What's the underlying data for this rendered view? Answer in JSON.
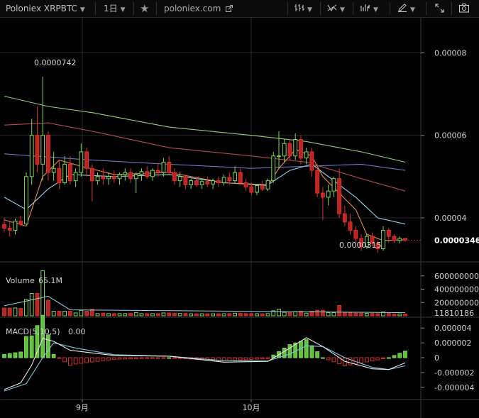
{
  "toolbar": {
    "symbol": "Poloniex XRPBTC",
    "interval": "1日",
    "site": "poloniex.com",
    "icons": [
      "chevron-down-icon",
      "star-icon",
      "external-link-icon",
      "bar-style-icon",
      "indicator-icon",
      "compare-icon",
      "draw-icon",
      "fullscreen-icon",
      "screenshot-icon"
    ]
  },
  "chart_data": {
    "type": "candlestick",
    "price_axis": {
      "ticks": [
        "0.00008",
        "0.00006",
        "0.00004"
      ],
      "current_label": "0.0000346",
      "range": [
        2.95e-05,
        8.85e-05
      ]
    },
    "annotations": {
      "high_label": "0.0000742",
      "low_label": "0.0000315"
    },
    "x_axis": {
      "labels": [
        "9月",
        "10月"
      ]
    },
    "candles": [
      [
        3.84,
        4.01,
        3.65,
        3.75
      ],
      [
        3.75,
        3.9,
        3.55,
        3.7
      ],
      [
        3.7,
        3.98,
        3.6,
        3.92
      ],
      [
        3.92,
        4.05,
        3.8,
        3.85
      ],
      [
        3.85,
        5.1,
        3.85,
        5.0
      ],
      [
        5.0,
        6.4,
        4.8,
        6.0
      ],
      [
        6.0,
        6.7,
        5.1,
        5.3
      ],
      [
        5.3,
        7.42,
        4.9,
        6.0
      ],
      [
        6.0,
        6.1,
        4.9,
        5.1
      ],
      [
        5.1,
        5.6,
        4.9,
        5.2
      ],
      [
        5.2,
        5.4,
        4.7,
        4.85
      ],
      [
        4.85,
        5.5,
        4.8,
        5.3
      ],
      [
        5.3,
        5.5,
        4.8,
        4.9
      ],
      [
        4.9,
        5.2,
        4.75,
        5.1
      ],
      [
        5.1,
        5.8,
        5.0,
        5.6
      ],
      [
        5.6,
        5.7,
        5.0,
        5.2
      ],
      [
        5.2,
        5.3,
        4.4,
        4.9
      ],
      [
        4.9,
        5.1,
        4.8,
        5.0
      ],
      [
        5.0,
        5.2,
        4.8,
        4.95
      ],
      [
        4.95,
        5.1,
        4.8,
        5.0
      ],
      [
        5.0,
        5.15,
        4.85,
        4.95
      ],
      [
        4.95,
        5.1,
        4.8,
        5.05
      ],
      [
        5.05,
        5.2,
        4.9,
        5.1
      ],
      [
        5.1,
        5.2,
        4.85,
        4.95
      ],
      [
        4.95,
        5.1,
        4.6,
        5.05
      ],
      [
        5.05,
        5.2,
        4.9,
        5.12
      ],
      [
        5.12,
        5.25,
        4.95,
        5.0
      ],
      [
        5.0,
        5.2,
        4.9,
        5.15
      ],
      [
        5.15,
        5.3,
        5.0,
        5.1
      ],
      [
        5.1,
        5.45,
        5.0,
        5.35
      ],
      [
        5.35,
        5.5,
        5.05,
        5.1
      ],
      [
        5.1,
        5.2,
        4.8,
        4.9
      ],
      [
        4.9,
        5.1,
        4.75,
        5.0
      ],
      [
        5.0,
        5.05,
        4.7,
        4.8
      ],
      [
        4.8,
        4.95,
        4.7,
        4.9
      ],
      [
        4.9,
        5.0,
        4.75,
        4.8
      ],
      [
        4.8,
        4.95,
        4.7,
        4.88
      ],
      [
        4.88,
        5.0,
        4.75,
        4.82
      ],
      [
        4.82,
        4.95,
        4.7,
        4.9
      ],
      [
        4.9,
        5.0,
        4.75,
        4.85
      ],
      [
        4.85,
        5.05,
        4.78,
        4.98
      ],
      [
        4.98,
        5.1,
        4.8,
        4.9
      ],
      [
        4.9,
        5.25,
        4.85,
        5.1
      ],
      [
        5.1,
        5.2,
        4.8,
        4.85
      ],
      [
        4.85,
        4.95,
        4.65,
        4.75
      ],
      [
        4.75,
        4.85,
        4.55,
        4.62
      ],
      [
        4.62,
        4.82,
        4.55,
        4.78
      ],
      [
        4.78,
        4.9,
        4.65,
        4.7
      ],
      [
        4.7,
        4.95,
        4.65,
        4.9
      ],
      [
        4.9,
        5.6,
        4.85,
        5.5
      ],
      [
        5.5,
        6.1,
        5.2,
        5.5
      ],
      [
        5.5,
        5.9,
        5.35,
        5.8
      ],
      [
        5.8,
        5.9,
        5.4,
        5.5
      ],
      [
        5.5,
        6.05,
        5.4,
        5.9
      ],
      [
        5.9,
        6.0,
        5.3,
        5.45
      ],
      [
        5.45,
        5.7,
        5.3,
        5.6
      ],
      [
        5.6,
        5.7,
        5.0,
        5.15
      ],
      [
        5.15,
        5.3,
        4.5,
        4.6
      ],
      [
        4.6,
        4.75,
        3.95,
        4.5
      ],
      [
        4.5,
        4.8,
        4.3,
        4.65
      ],
      [
        4.65,
        5.0,
        4.5,
        4.95
      ],
      [
        4.95,
        5.2,
        4.0,
        4.1
      ],
      [
        4.1,
        4.3,
        3.8,
        3.9
      ],
      [
        3.9,
        4.1,
        3.6,
        3.7
      ],
      [
        3.7,
        3.8,
        3.4,
        3.5
      ],
      [
        3.5,
        3.6,
        3.2,
        3.3
      ],
      [
        3.3,
        3.6,
        3.25,
        3.55
      ],
      [
        3.55,
        3.65,
        3.3,
        3.38
      ],
      [
        3.38,
        3.45,
        3.15,
        3.25
      ],
      [
        3.25,
        3.8,
        3.2,
        3.7
      ],
      [
        3.7,
        3.75,
        3.4,
        3.55
      ],
      [
        3.55,
        3.6,
        3.4,
        3.45
      ],
      [
        3.45,
        3.55,
        3.38,
        3.5
      ],
      [
        3.5,
        3.52,
        3.42,
        3.46
      ]
    ],
    "moving_averages": [
      {
        "color": "#8fce7a",
        "points": [
          [
            0,
            6.95
          ],
          [
            8,
            6.7
          ],
          [
            16,
            6.55
          ],
          [
            30,
            6.2
          ],
          [
            45,
            6.0
          ],
          [
            55,
            5.85
          ],
          [
            65,
            5.6
          ],
          [
            73,
            5.35
          ]
        ]
      },
      {
        "color": "#b34b54",
        "points": [
          [
            0,
            6.25
          ],
          [
            8,
            6.3
          ],
          [
            16,
            6.1
          ],
          [
            30,
            5.7
          ],
          [
            45,
            5.5
          ],
          [
            55,
            5.35
          ],
          [
            65,
            4.95
          ],
          [
            73,
            4.65
          ]
        ]
      },
      {
        "color": "#6f74c7",
        "points": [
          [
            0,
            5.55
          ],
          [
            16,
            5.4
          ],
          [
            30,
            5.3
          ],
          [
            45,
            5.2
          ],
          [
            55,
            5.25
          ],
          [
            65,
            5.3
          ],
          [
            73,
            5.15
          ]
        ]
      },
      {
        "color": "#8fd3e8",
        "points": [
          [
            0,
            4.5
          ],
          [
            4,
            4.2
          ],
          [
            8,
            4.7
          ],
          [
            12,
            5.05
          ],
          [
            20,
            5.0
          ],
          [
            30,
            5.05
          ],
          [
            40,
            4.85
          ],
          [
            48,
            4.8
          ],
          [
            52,
            5.15
          ],
          [
            56,
            5.3
          ],
          [
            60,
            4.9
          ],
          [
            64,
            4.5
          ],
          [
            68,
            4.0
          ],
          [
            73,
            3.85
          ]
        ]
      },
      {
        "color": "#e8894a",
        "points": [
          [
            0,
            3.95
          ],
          [
            4,
            3.8
          ],
          [
            7,
            5.0
          ],
          [
            10,
            5.4
          ],
          [
            14,
            5.25
          ],
          [
            20,
            5.05
          ],
          [
            30,
            5.1
          ],
          [
            40,
            4.85
          ],
          [
            48,
            4.78
          ],
          [
            50,
            5.2
          ],
          [
            53,
            5.65
          ],
          [
            56,
            5.5
          ],
          [
            58,
            5.0
          ],
          [
            61,
            4.6
          ],
          [
            64,
            4.2
          ],
          [
            66,
            3.6
          ],
          [
            69,
            3.45
          ],
          [
            73,
            3.47
          ]
        ]
      }
    ],
    "volume": {
      "label": "Volume",
      "value": "65.1M",
      "ticks": [
        "600000000",
        "400000000",
        "200000000"
      ],
      "current_label": "11810186",
      "range": [
        0,
        800000000
      ]
    },
    "macd": {
      "label": "MACD(5,10,5)",
      "value": "0.00",
      "ticks": [
        "0.000004",
        "0.000002",
        "0",
        "-0.000002",
        "-0.000004"
      ],
      "range": [
        -4.5e-06,
        4.5e-06
      ],
      "macd_points": [
        [
          0,
          -4.3
        ],
        [
          3,
          -3.4
        ],
        [
          5,
          -1.0
        ],
        [
          7,
          2.6
        ],
        [
          9,
          2.2
        ],
        [
          12,
          1.0
        ],
        [
          20,
          0.3
        ],
        [
          30,
          0.2
        ],
        [
          40,
          -0.6
        ],
        [
          48,
          -0.5
        ],
        [
          52,
          1.3
        ],
        [
          55,
          2.7
        ],
        [
          58,
          1.5
        ],
        [
          62,
          -0.5
        ],
        [
          67,
          -1.5
        ],
        [
          70,
          -1.6
        ],
        [
          73,
          -0.7
        ]
      ],
      "signal_points": [
        [
          0,
          -4.5
        ],
        [
          4,
          -3.5
        ],
        [
          7,
          0.0
        ],
        [
          9,
          2.0
        ],
        [
          13,
          1.3
        ],
        [
          20,
          0.4
        ],
        [
          30,
          0.2
        ],
        [
          40,
          -0.4
        ],
        [
          48,
          -0.45
        ],
        [
          52,
          0.5
        ],
        [
          55,
          1.6
        ],
        [
          58,
          1.5
        ],
        [
          62,
          0.0
        ],
        [
          67,
          -1.3
        ],
        [
          70,
          -1.6
        ],
        [
          73,
          -1.1
        ]
      ]
    }
  }
}
